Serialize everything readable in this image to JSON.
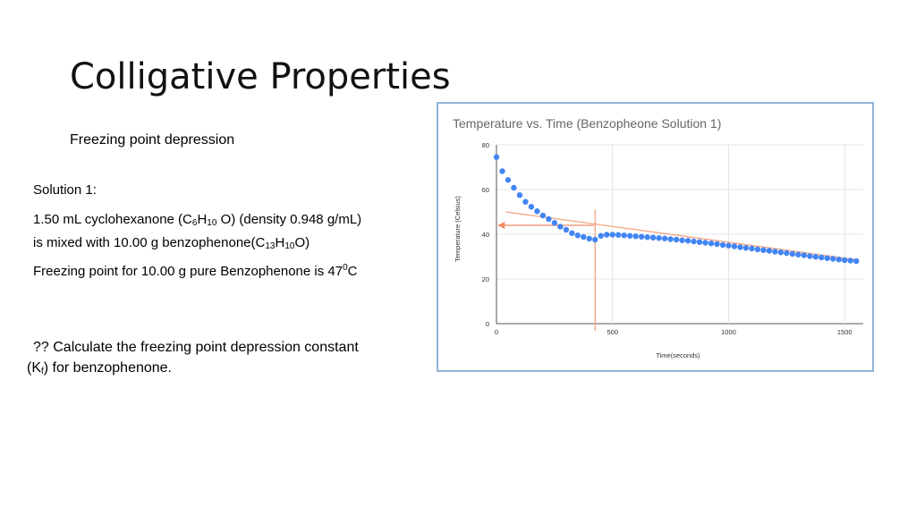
{
  "slide": {
    "title": "Colligative Properties",
    "subtitle": "Freezing point depression",
    "solution_label": "Solution 1:",
    "line1": {
      "a": "1.50 mL cyclohexanone (C",
      "s1": "6",
      "b": "H",
      "s2": "10",
      "c": " O)  (density 0.948 g/mL)"
    },
    "line2": {
      "a": "is mixed with 10.00 g benzophenone(C",
      "s1": "13",
      "b": "H",
      "s2": "10",
      "c": "O)"
    },
    "line3": {
      "a": "Freezing point for 10.00 g pure Benzophenone is 47",
      "sup": "0",
      "b": "C"
    },
    "question1": "?? Calculate the freezing point depression constant",
    "question2": {
      "a": "(K",
      "sub": "f",
      "b": ") for benzophenone."
    }
  },
  "colors": {
    "points": "#4285f4",
    "annotation": "#f4a582",
    "arrow": "#f28b63",
    "frame_border": "#8fb3d9",
    "grid": "#e4e4e4"
  },
  "chart_data": {
    "type": "scatter",
    "title": "Temperature vs. Time (Benzopheone Solution 1)",
    "xlabel": "Time(seconds)",
    "ylabel": "Temperature (Celsius)",
    "xlim": [
      0,
      1580
    ],
    "ylim": [
      0,
      80
    ],
    "x_ticks": [
      0,
      500,
      1000,
      1500
    ],
    "y_ticks": [
      0,
      20,
      40,
      60,
      80
    ],
    "grid": true,
    "series": [
      {
        "x": [
          0,
          25,
          50,
          75,
          100,
          125,
          150,
          175,
          200,
          225,
          250,
          275,
          300,
          325,
          350,
          375,
          400,
          425,
          450,
          475,
          500,
          525,
          550,
          575,
          600,
          625,
          650,
          675,
          700,
          725,
          750,
          775,
          800,
          825,
          850,
          875,
          900,
          925,
          950,
          975,
          1000,
          1025,
          1050,
          1075,
          1100,
          1125,
          1150,
          1175,
          1200,
          1225,
          1250,
          1275,
          1300,
          1325,
          1350,
          1375,
          1400,
          1425,
          1450,
          1475,
          1500,
          1525,
          1550
        ],
        "y": [
          74.5,
          68.2,
          64.3,
          60.8,
          57.5,
          54.5,
          52.3,
          50.3,
          48.4,
          46.8,
          45.1,
          43.4,
          42.0,
          40.5,
          39.5,
          38.8,
          38.0,
          37.6,
          39.3,
          39.8,
          39.8,
          39.7,
          39.5,
          39.3,
          39.1,
          38.9,
          38.7,
          38.5,
          38.3,
          38.1,
          37.8,
          37.6,
          37.3,
          37.1,
          36.8,
          36.5,
          36.2,
          35.9,
          35.6,
          35.2,
          34.9,
          34.6,
          34.2,
          33.9,
          33.6,
          33.2,
          32.9,
          32.6,
          32.2,
          31.9,
          31.6,
          31.2,
          30.9,
          30.6,
          30.2,
          29.9,
          29.6,
          29.3,
          29.0,
          28.7,
          28.4,
          28.2,
          28.0
        ]
      }
    ],
    "annotations": {
      "trend_line": {
        "x": [
          40,
          1560
        ],
        "y": [
          50,
          28.5
        ]
      },
      "vertical_line": {
        "x": 425,
        "y": [
          0,
          51
        ]
      },
      "arrow": {
        "from": [
          420,
          44
        ],
        "to": [
          5,
          44
        ]
      }
    }
  }
}
